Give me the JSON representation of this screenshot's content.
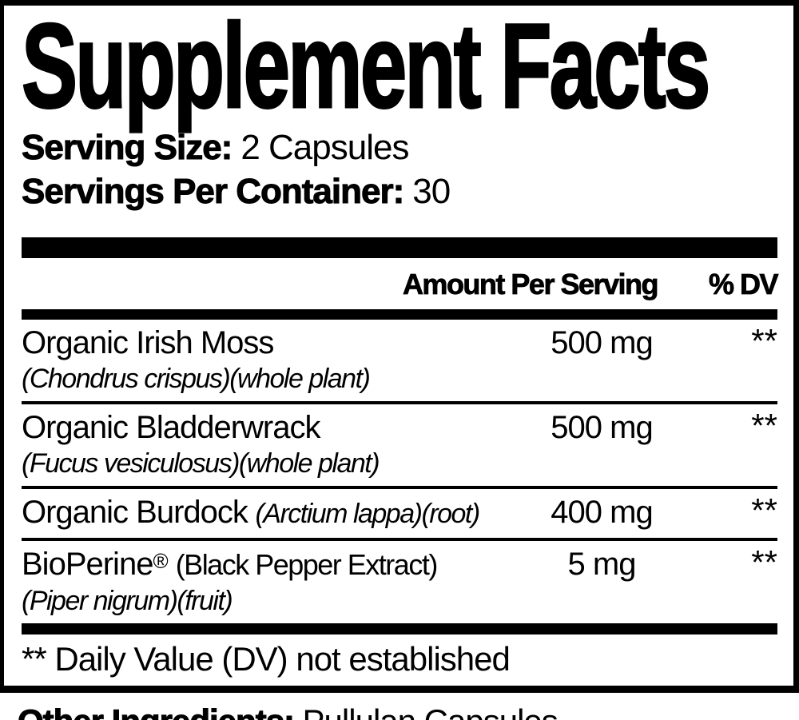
{
  "label": {
    "title": "Supplement Facts",
    "serving_size_label": "Serving Size:",
    "serving_size_value": "2 Capsules",
    "servings_per_container_label": "Servings Per Container:",
    "servings_per_container_value": "30",
    "header": {
      "amount": "Amount Per Serving",
      "dv": "% DV"
    },
    "rows": [
      {
        "name": "Organic Irish Moss",
        "sub": "(Chondrus crispus)(whole plant)",
        "amount": "500 mg",
        "dv": "**"
      },
      {
        "name": "Organic Bladderwrack",
        "sub": "(Fucus vesiculosus)(whole plant)",
        "amount": "500 mg",
        "dv": "**"
      },
      {
        "name": "Organic Burdock",
        "botanical_inline": "(Arctium lappa)(root)",
        "amount": "400 mg",
        "dv": "**"
      },
      {
        "name": "BioPerine",
        "trademark": "®",
        "paren_inline": "(Black Pepper Extract)",
        "sub": "(Piper nigrum)(fruit)",
        "amount": "5 mg",
        "dv": "**"
      }
    ],
    "footnote": "** Daily Value (DV) not established",
    "other_ingredients_label": "Other Ingredients:",
    "other_ingredients_value": "Pullulan Capsules."
  },
  "colors": {
    "text": "#000000",
    "background": "#ffffff",
    "border": "#000000"
  }
}
